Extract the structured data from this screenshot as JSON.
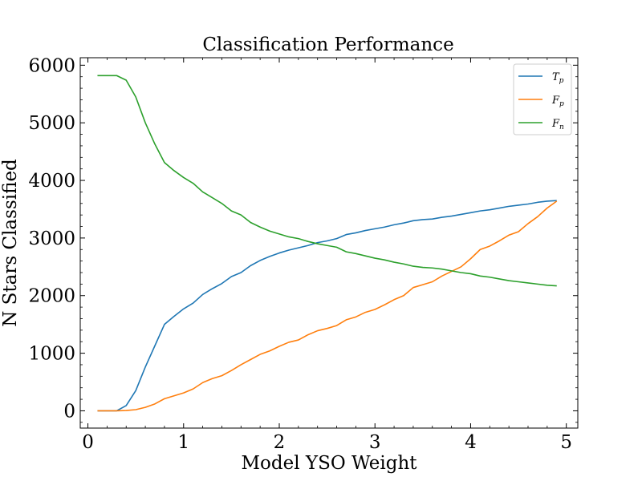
{
  "chart_data": {
    "type": "line",
    "title": "Classification Performance",
    "xlabel": "Model YSO Weight",
    "ylabel": "N Stars Classified",
    "xlim": [
      -0.08,
      5.12
    ],
    "ylim": [
      -300,
      6130
    ],
    "xticks": [
      0,
      1,
      2,
      3,
      4,
      5
    ],
    "yticks": [
      0,
      1000,
      2000,
      3000,
      4000,
      5000,
      6000
    ],
    "x": [
      0.1,
      0.2,
      0.3,
      0.4,
      0.5,
      0.6,
      0.7,
      0.8,
      0.9,
      1.0,
      1.1,
      1.2,
      1.3,
      1.4,
      1.5,
      1.6,
      1.7,
      1.8,
      1.9,
      2.0,
      2.1,
      2.2,
      2.3,
      2.4,
      2.5,
      2.6,
      2.7,
      2.8,
      2.9,
      3.0,
      3.1,
      3.2,
      3.3,
      3.4,
      3.5,
      3.6,
      3.7,
      3.8,
      3.9,
      4.0,
      4.1,
      4.2,
      4.3,
      4.4,
      4.5,
      4.6,
      4.7,
      4.8,
      4.9
    ],
    "legend_position": "top-right",
    "grid": false,
    "series": [
      {
        "name": "T",
        "subscript": "p",
        "color": "#1f77b4",
        "values": [
          0,
          0,
          0,
          90,
          350,
          760,
          1130,
          1500,
          1640,
          1770,
          1870,
          2020,
          2120,
          2210,
          2330,
          2400,
          2520,
          2610,
          2680,
          2740,
          2790,
          2830,
          2870,
          2920,
          2950,
          2990,
          3060,
          3090,
          3130,
          3160,
          3190,
          3230,
          3260,
          3300,
          3320,
          3330,
          3360,
          3380,
          3410,
          3440,
          3470,
          3490,
          3520,
          3550,
          3570,
          3590,
          3620,
          3640,
          3650
        ]
      },
      {
        "name": "F",
        "subscript": "p",
        "color": "#ff7f0e",
        "values": [
          0,
          0,
          0,
          5,
          20,
          60,
          120,
          210,
          260,
          310,
          380,
          490,
          560,
          610,
          700,
          800,
          890,
          980,
          1040,
          1120,
          1190,
          1230,
          1320,
          1390,
          1430,
          1480,
          1580,
          1630,
          1710,
          1760,
          1840,
          1930,
          2000,
          2140,
          2190,
          2240,
          2340,
          2420,
          2500,
          2640,
          2800,
          2860,
          2950,
          3050,
          3110,
          3250,
          3370,
          3520,
          3640
        ]
      },
      {
        "name": "F",
        "subscript": "n",
        "color": "#2ca02c",
        "values": [
          5820,
          5820,
          5820,
          5740,
          5450,
          5000,
          4630,
          4310,
          4170,
          4050,
          3950,
          3800,
          3700,
          3600,
          3470,
          3400,
          3270,
          3190,
          3120,
          3070,
          3020,
          2990,
          2940,
          2900,
          2870,
          2840,
          2760,
          2730,
          2690,
          2650,
          2620,
          2580,
          2550,
          2510,
          2490,
          2480,
          2460,
          2430,
          2400,
          2380,
          2340,
          2320,
          2290,
          2260,
          2240,
          2220,
          2200,
          2180,
          2170
        ]
      }
    ]
  }
}
